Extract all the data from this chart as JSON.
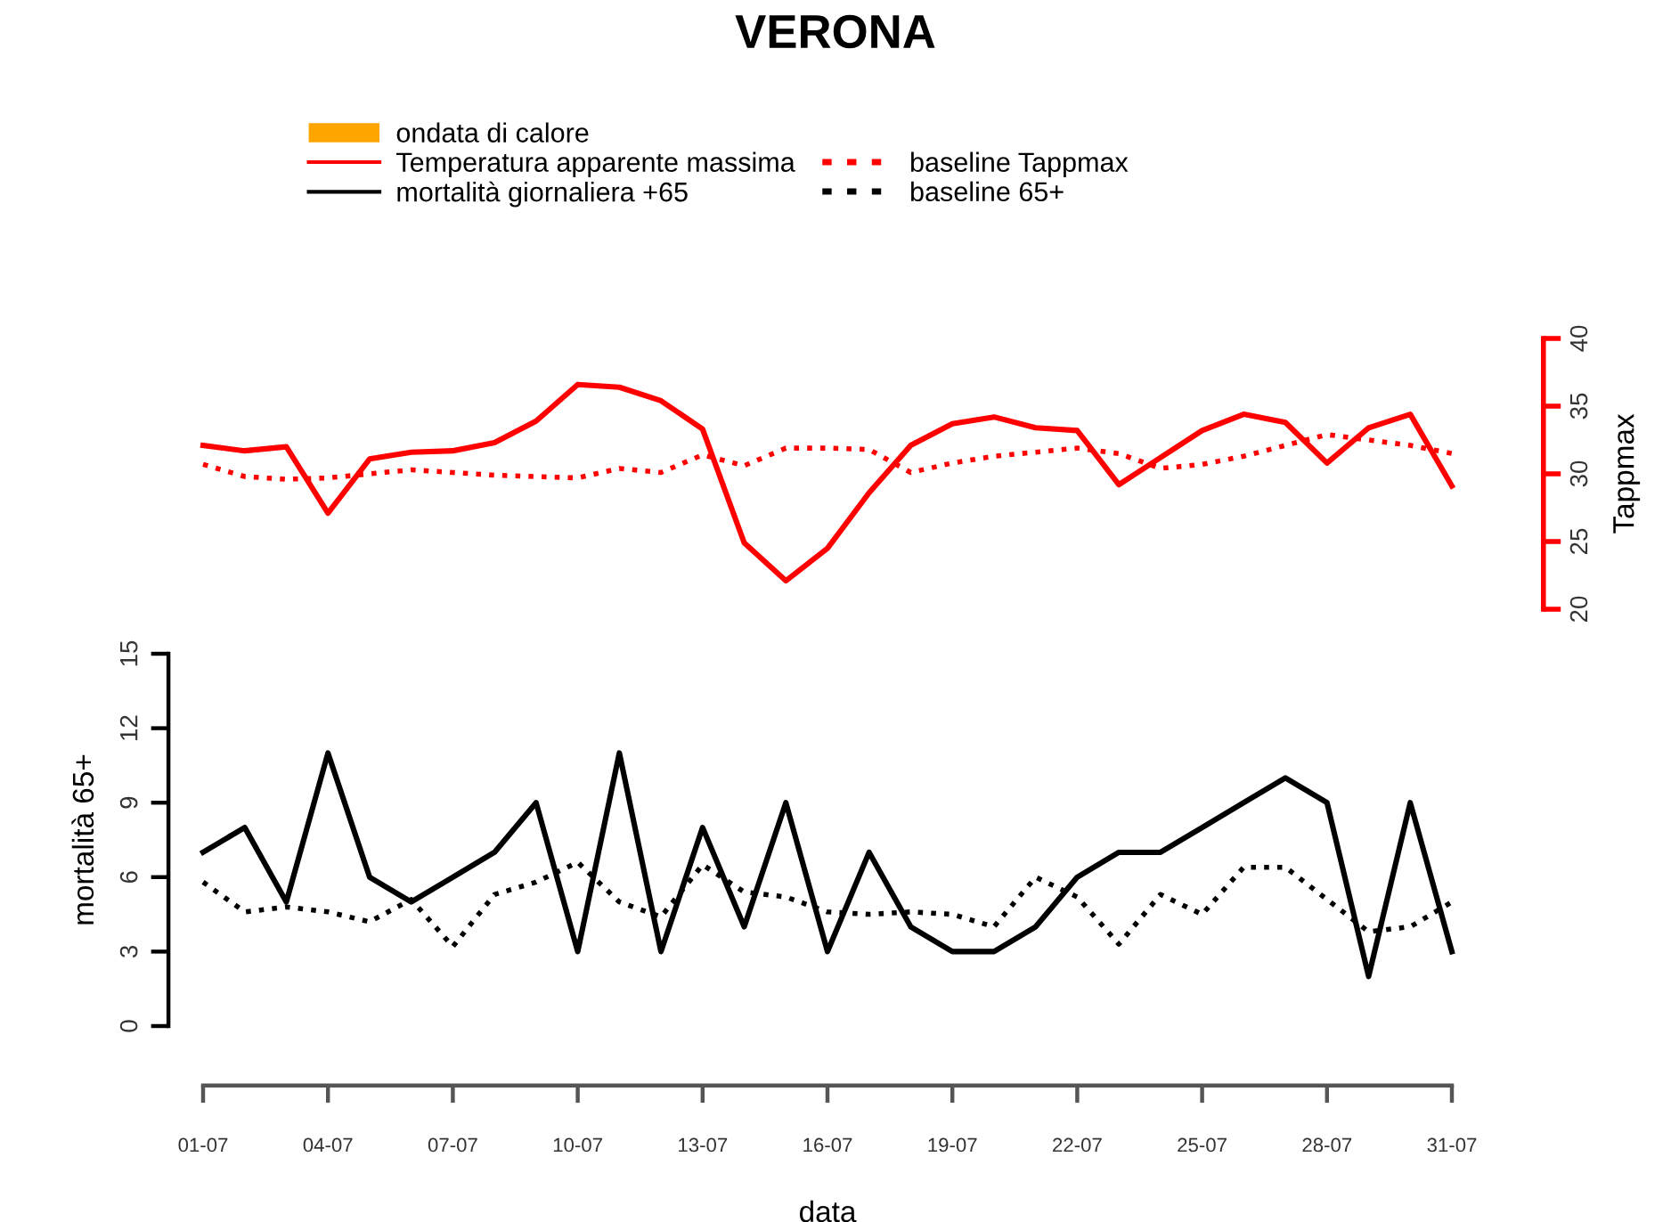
{
  "chart_data": [
    {
      "type": "line",
      "title": "VERONA",
      "y2label": "Tappmax",
      "categories": [
        null,
        null,
        null,
        null,
        null,
        null,
        null,
        null,
        null,
        null,
        null,
        null,
        null,
        null,
        null,
        null,
        null,
        null,
        null,
        null,
        null,
        null,
        null,
        null,
        null,
        null,
        null,
        null,
        null,
        null,
        null
      ],
      "y2lim": [
        20,
        40
      ],
      "y2ticks": [
        20,
        25,
        30,
        35,
        40
      ],
      "tick_labels": "y",
      "legend": "top",
      "grid": false,
      "series": [
        {
          "name": "ondata di calore",
          "type": "bar",
          "color": "#ffa500",
          "axis": "y2",
          "values": [
            null,
            null,
            null,
            null,
            null,
            null,
            null,
            null,
            null,
            null,
            null,
            null,
            null,
            null,
            null,
            null,
            null,
            null,
            null,
            null,
            null,
            null,
            null,
            null,
            null,
            null,
            null,
            null,
            null,
            null,
            null
          ]
        },
        {
          "name": "Temperatura apparente massima",
          "color": "#ff0000",
          "axis": "y2",
          "line_style": "solid",
          "values": [
            32.1,
            31.7,
            32.0,
            27.1,
            31.1,
            31.6,
            31.7,
            32.3,
            33.9,
            36.6,
            36.4,
            35.4,
            33.3,
            24.9,
            22.1,
            24.5,
            28.6,
            32.1,
            33.7,
            34.2,
            33.4,
            33.2,
            29.2,
            31.2,
            33.2,
            34.4,
            33.8,
            30.8,
            33.4,
            34.4,
            29.1
          ]
        },
        {
          "name": "baseline Tappmax",
          "color": "#ff0000",
          "axis": "y2",
          "line_style": "dotted",
          "values": [
            30.7,
            29.8,
            29.6,
            29.7,
            30.0,
            30.3,
            30.1,
            29.9,
            29.8,
            29.7,
            30.4,
            30.1,
            31.4,
            30.6,
            31.9,
            31.9,
            31.8,
            30.1,
            30.8,
            31.3,
            31.6,
            31.9,
            31.5,
            30.4,
            30.7,
            31.3,
            32.1,
            32.9,
            32.5,
            32.1,
            31.5
          ]
        }
      ]
    },
    {
      "type": "line",
      "xlabel": "data",
      "ylabel": "mortalità 65+",
      "categories": [
        "01-07",
        null,
        null,
        "04-07",
        null,
        null,
        "07-07",
        null,
        null,
        "10-07",
        null,
        null,
        "13-07",
        null,
        null,
        "16-07",
        null,
        null,
        "19-07",
        null,
        null,
        "22-07",
        null,
        null,
        "25-07",
        null,
        null,
        "28-07",
        null,
        null,
        "31-07"
      ],
      "ylim": [
        0,
        15
      ],
      "yticks": [
        0,
        3,
        6,
        9,
        12,
        15
      ],
      "grid": false,
      "legend": "top",
      "series": [
        {
          "name": "mortalità giornaliera +65",
          "color": "#000000",
          "line_style": "solid",
          "values": [
            7,
            8,
            5,
            11,
            6,
            5,
            6,
            7,
            9,
            3,
            11,
            3,
            8,
            4,
            9,
            3,
            7,
            4,
            3,
            3,
            4,
            6,
            7,
            7,
            8,
            9,
            10,
            9,
            2,
            9,
            3
          ]
        },
        {
          "name": "baseline 65+",
          "color": "#000000",
          "line_style": "dotted",
          "values": [
            5.8,
            4.6,
            4.8,
            4.6,
            4.2,
            5.1,
            3.2,
            5.3,
            5.8,
            6.6,
            5.0,
            4.4,
            6.5,
            5.4,
            5.2,
            4.6,
            4.5,
            4.6,
            4.5,
            4.0,
            6.0,
            5.2,
            3.3,
            5.3,
            4.5,
            6.4,
            6.4,
            5.1,
            3.8,
            4.0,
            5.0
          ]
        }
      ]
    }
  ]
}
